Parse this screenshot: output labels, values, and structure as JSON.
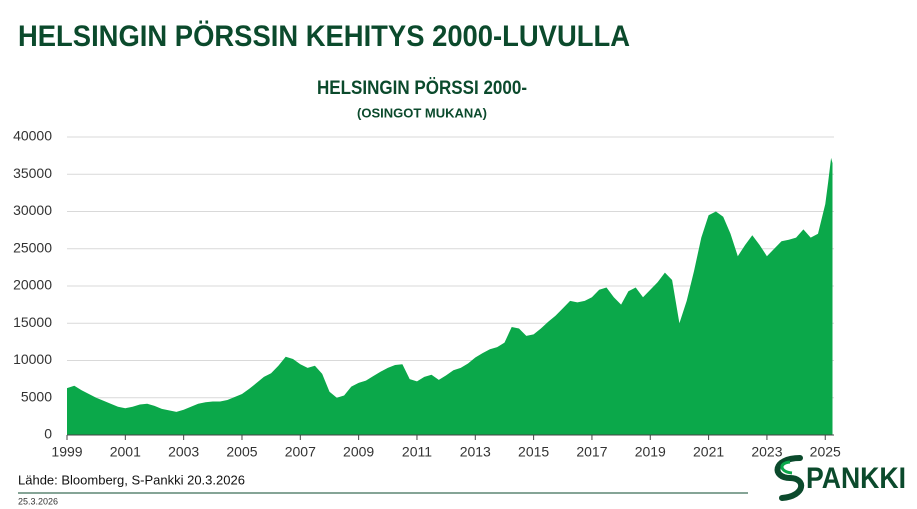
{
  "header": {
    "title": "HELSINGIN PÖRSSIN KEHITYS 2000-LUVULLA"
  },
  "chart_data": {
    "type": "area",
    "title": "HELSINGIN PÖRSSI 2000-",
    "subtitle": "(OSINGOT MUKANA)",
    "color": "#0ba84a",
    "grid": true,
    "xlim": [
      1999,
      2025.3
    ],
    "xticks": [
      1999,
      2001,
      2003,
      2005,
      2007,
      2009,
      2011,
      2013,
      2015,
      2017,
      2019,
      2021,
      2023,
      2025
    ],
    "ylim": [
      0,
      40000
    ],
    "yticks": [
      0,
      5000,
      10000,
      15000,
      20000,
      25000,
      30000,
      35000,
      40000
    ],
    "x": [
      1999,
      1999.25,
      1999.5,
      1999.75,
      2000,
      2000.25,
      2000.5,
      2000.75,
      2001,
      2001.25,
      2001.5,
      2001.75,
      2002,
      2002.25,
      2002.5,
      2002.75,
      2003,
      2003.25,
      2003.5,
      2003.75,
      2004,
      2004.25,
      2004.5,
      2004.75,
      2005,
      2005.25,
      2005.5,
      2005.75,
      2006,
      2006.25,
      2006.5,
      2006.75,
      2007,
      2007.25,
      2007.5,
      2007.75,
      2008,
      2008.25,
      2008.5,
      2008.75,
      2009,
      2009.25,
      2009.5,
      2009.75,
      2010,
      2010.25,
      2010.5,
      2010.75,
      2011,
      2011.25,
      2011.5,
      2011.75,
      2012,
      2012.25,
      2012.5,
      2012.75,
      2013,
      2013.25,
      2013.5,
      2013.75,
      2014,
      2014.25,
      2014.5,
      2014.75,
      2015,
      2015.25,
      2015.5,
      2015.75,
      2016,
      2016.25,
      2016.5,
      2016.75,
      2017,
      2017.25,
      2017.5,
      2017.75,
      2018,
      2018.25,
      2018.5,
      2018.75,
      2019,
      2019.25,
      2019.5,
      2019.75,
      2020,
      2020.25,
      2020.5,
      2020.75,
      2021,
      2021.25,
      2021.5,
      2021.75,
      2022,
      2022.25,
      2022.5,
      2022.75,
      2023,
      2023.25,
      2023.5,
      2023.75,
      2024,
      2024.25,
      2024.5,
      2024.75,
      2025,
      2025.1,
      2025.2,
      2025.25
    ],
    "values": [
      6300,
      6600,
      6000,
      5500,
      5000,
      4600,
      4200,
      3800,
      3600,
      3800,
      4100,
      4200,
      3900,
      3500,
      3300,
      3100,
      3400,
      3800,
      4200,
      4400,
      4500,
      4500,
      4700,
      5100,
      5500,
      6200,
      7000,
      7800,
      8300,
      9300,
      10500,
      10200,
      9500,
      9000,
      9300,
      8200,
      5800,
      5000,
      5300,
      6500,
      7000,
      7300,
      7900,
      8500,
      9000,
      9400,
      9500,
      7500,
      7200,
      7800,
      8100,
      7400,
      8000,
      8700,
      9000,
      9600,
      10400,
      11000,
      11500,
      11800,
      12400,
      14500,
      14300,
      13300,
      13500,
      14300,
      15200,
      16000,
      17000,
      18000,
      17800,
      18000,
      18500,
      19500,
      19800,
      18500,
      17500,
      19300,
      19800,
      18500,
      19500,
      20500,
      21800,
      20800,
      15000,
      18000,
      22000,
      26500,
      29500,
      30000,
      29300,
      27000,
      24000,
      25500,
      26800,
      25500,
      24000,
      25000,
      26000,
      26200,
      26500,
      27600,
      26500,
      27000,
      31000,
      34000,
      37200,
      36500
    ]
  },
  "footer": {
    "source": "Lähde: Bloomberg, S-Pankki 20.3.2026",
    "date": "25.3.2026"
  },
  "logo": {
    "text": "PANKKI"
  }
}
